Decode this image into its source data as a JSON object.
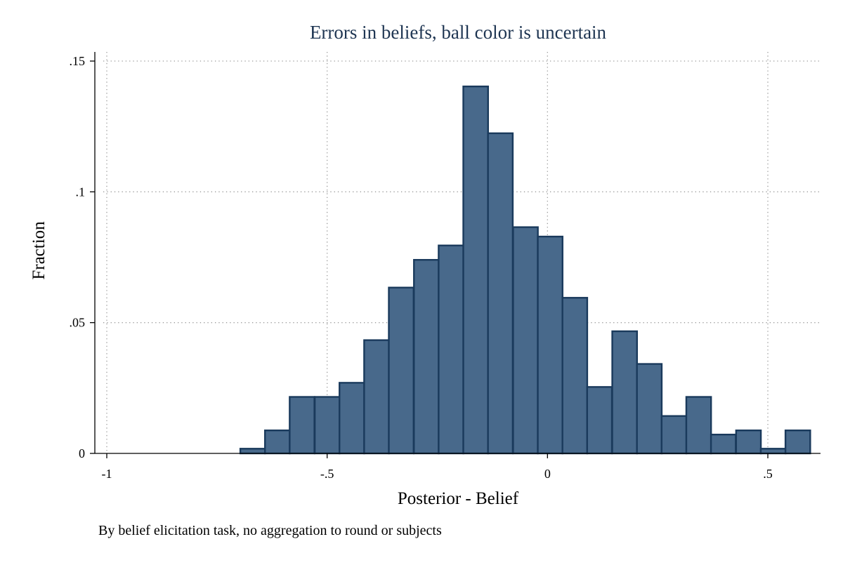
{
  "chart_data": {
    "type": "bar",
    "subtype": "histogram",
    "title": "Errors in beliefs, ball color is uncertain",
    "xlabel": "Posterior - Belief",
    "ylabel": "Fraction",
    "note": "By belief elicitation task, no aggregation to round or subjects",
    "xlim": [
      -1,
      0.6
    ],
    "ylim": [
      0,
      0.15
    ],
    "xticks": [
      {
        "value": -1,
        "label": "-1"
      },
      {
        "value": -0.5,
        "label": "-.5"
      },
      {
        "value": 0,
        "label": "0"
      },
      {
        "value": 0.5,
        "label": ".5"
      }
    ],
    "yticks": [
      {
        "value": 0,
        "label": "0"
      },
      {
        "value": 0.05,
        "label": ".05"
      },
      {
        "value": 0.1,
        "label": ".1"
      },
      {
        "value": 0.15,
        "label": ".15"
      }
    ],
    "grid": true,
    "bin_width": 0.0562,
    "bins": [
      {
        "x0": -0.697,
        "value": 0.0018
      },
      {
        "x0": -0.641,
        "value": 0.0088
      },
      {
        "x0": -0.585,
        "value": 0.0216
      },
      {
        "x0": -0.528,
        "value": 0.0216
      },
      {
        "x0": -0.472,
        "value": 0.027
      },
      {
        "x0": -0.416,
        "value": 0.0433
      },
      {
        "x0": -0.36,
        "value": 0.0634
      },
      {
        "x0": -0.303,
        "value": 0.074
      },
      {
        "x0": -0.247,
        "value": 0.0795
      },
      {
        "x0": -0.191,
        "value": 0.1403
      },
      {
        "x0": -0.135,
        "value": 0.1224
      },
      {
        "x0": -0.078,
        "value": 0.0865
      },
      {
        "x0": -0.022,
        "value": 0.0829
      },
      {
        "x0": 0.034,
        "value": 0.0595
      },
      {
        "x0": 0.09,
        "value": 0.0254
      },
      {
        "x0": 0.147,
        "value": 0.0467
      },
      {
        "x0": 0.203,
        "value": 0.0342
      },
      {
        "x0": 0.259,
        "value": 0.0143
      },
      {
        "x0": 0.315,
        "value": 0.0216
      },
      {
        "x0": 0.371,
        "value": 0.0072
      },
      {
        "x0": 0.428,
        "value": 0.0088
      },
      {
        "x0": 0.484,
        "value": 0.0018
      },
      {
        "x0": 0.54,
        "value": 0.0088
      }
    ]
  }
}
